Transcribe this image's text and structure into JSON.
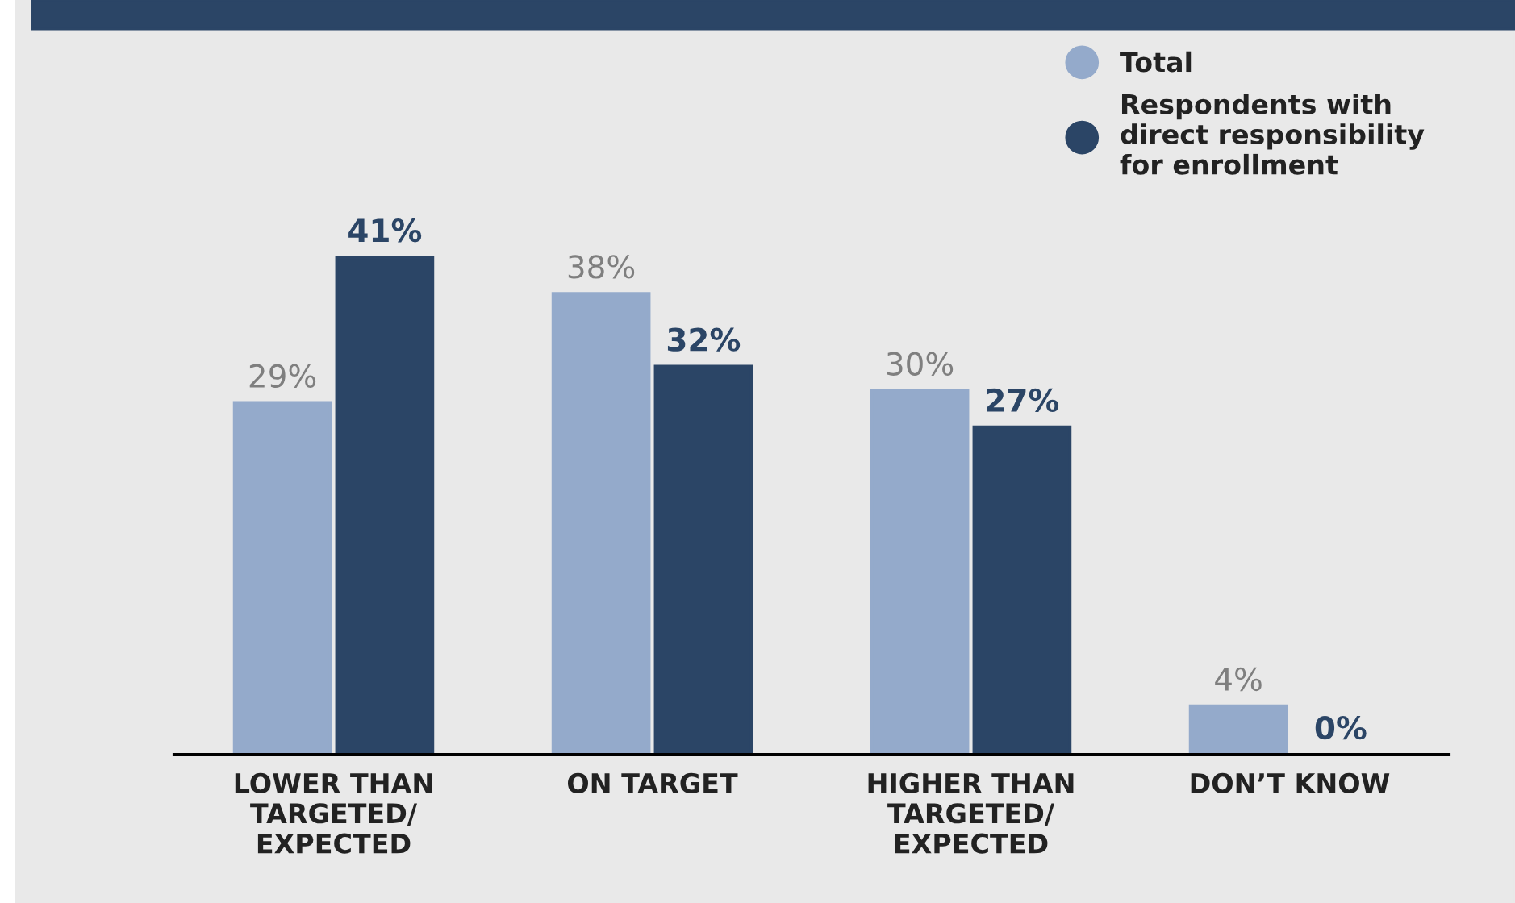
{
  "chart_data": {
    "type": "bar",
    "categories": [
      "LOWER THAN\nTARGETED/\nEXPECTED",
      "ON TARGET",
      "HIGHER THAN\nTARGETED/\nEXPECTED",
      "DON’T KNOW"
    ],
    "series": [
      {
        "name": "Total",
        "color": "#94aacb",
        "values": [
          29,
          38,
          30,
          4
        ],
        "value_labels": [
          "29%",
          "38%",
          "30%",
          "4%"
        ]
      },
      {
        "name": "Respondents with\ndirect responsibility\nfor enrollment",
        "color": "#2b4566",
        "values": [
          41,
          32,
          27,
          0
        ],
        "value_labels": [
          "41%",
          "32%",
          "27%",
          "0%"
        ]
      }
    ],
    "legend": "top right"
  }
}
